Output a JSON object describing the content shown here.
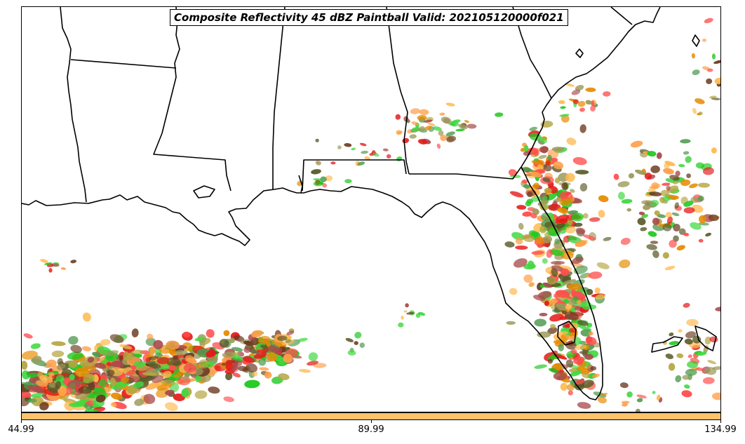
{
  "title": "Composite Reflectivity 45 dBZ Paintball Valid: 202105120000f021",
  "colorbar": {
    "color": "#ffc26b",
    "ticks": [
      "44.99",
      "89.99",
      "134.99"
    ]
  },
  "map_elements": {
    "land_outline_color": "#000000",
    "paintball_colors": [
      "#ff4d4d",
      "#e61a1a",
      "#40d940",
      "#1ec81e",
      "#4f9a4f",
      "#b5a642",
      "#9c9a5a",
      "#ff9e4a",
      "#e68a00",
      "#ffb84d",
      "#a84a4a",
      "#6b3a20",
      "#5a5a2a"
    ]
  }
}
